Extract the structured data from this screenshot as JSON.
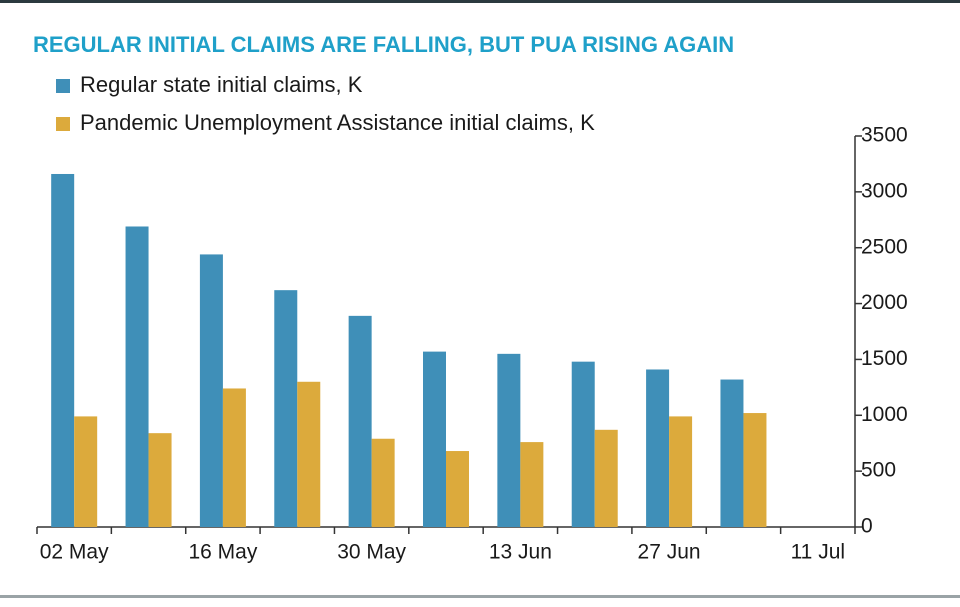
{
  "chart_data": {
    "type": "bar",
    "title": "REGULAR INITIAL CLAIMS ARE FALLING, BUT PUA RISING AGAIN",
    "categories": [
      "02 May",
      null,
      "16 May",
      null,
      "30 May",
      null,
      "13 Jun",
      null,
      "27 Jun",
      null,
      "11 Jul"
    ],
    "series": [
      {
        "name": "Regular state initial claims, K",
        "color": "#3f8fb8",
        "values": [
          3160,
          2690,
          2440,
          2120,
          1890,
          1570,
          1550,
          1480,
          1410,
          1320,
          null
        ]
      },
      {
        "name": "Pandemic Unemployment Assistance initial claims, K",
        "color": "#dcaa3c",
        "values": [
          990,
          840,
          1240,
          1300,
          790,
          680,
          760,
          870,
          990,
          1020,
          null
        ]
      }
    ],
    "ylim": [
      0,
      3500
    ],
    "yticks": [
      0,
      500,
      1000,
      1500,
      2000,
      2500,
      3000,
      3500
    ],
    "axis_side": "right",
    "grid": false,
    "legend": "top-left"
  }
}
